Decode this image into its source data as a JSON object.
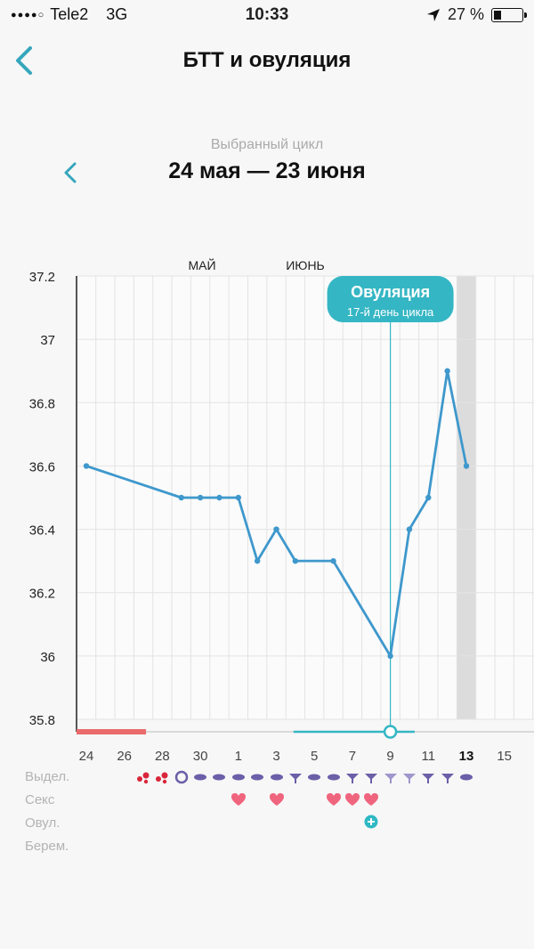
{
  "status_bar": {
    "carrier": "Tele2",
    "network": "3G",
    "time": "10:33",
    "battery": "27 %",
    "battery_level": 0.27
  },
  "header": {
    "title": "БТТ и овуляция"
  },
  "cycle": {
    "caption": "Выбранный цикл",
    "range": "24 мая — 23 июня"
  },
  "chart_data": {
    "type": "line",
    "ylim": [
      35.8,
      37.2
    ],
    "y_ticks": [
      "37.2",
      "37",
      "36.8",
      "36.6",
      "36.4",
      "36.2",
      "36",
      "35.8"
    ],
    "x_ticks": [
      "24",
      "26",
      "28",
      "30",
      "1",
      "3",
      "5",
      "7",
      "9",
      "11",
      "13",
      "15"
    ],
    "x_ticks_bold": "13",
    "months": [
      "МАЙ",
      "ИЮНЬ"
    ],
    "series": [
      {
        "points": [
          [
            0,
            36.6
          ],
          [
            5,
            36.5
          ],
          [
            6,
            36.5
          ],
          [
            7,
            36.5
          ],
          [
            8,
            36.5
          ],
          [
            9,
            36.3
          ],
          [
            10,
            36.4
          ],
          [
            11,
            36.3
          ],
          [
            13,
            36.3
          ],
          [
            16,
            36.0
          ],
          [
            17,
            36.4
          ],
          [
            18,
            36.5
          ],
          [
            19,
            36.9
          ],
          [
            20,
            36.6
          ]
        ]
      }
    ],
    "ovulation_marker": {
      "title": "Овуляция",
      "subtitle": "17-й день цикла",
      "day_index": 16
    },
    "highlight_day_index": 20,
    "period_days": [
      0,
      3
    ],
    "fertile_window_days": [
      11,
      17
    ],
    "line_color": "#3e98cc",
    "marker_color": "#35b6c4",
    "period_color": "#e96b6b"
  },
  "legend": {
    "discharge_label": "Выдел.",
    "sex_label": "Секс",
    "ovulation_label": "Овул.",
    "pregnancy_label": "Берем.",
    "discharge_icons": [
      {
        "day": 3,
        "icon": "blood-drops-icon"
      },
      {
        "day": 4,
        "icon": "blood-drops-icon"
      },
      {
        "day": 5,
        "icon": "ring-icon"
      },
      {
        "day": 6,
        "icon": "discharge-drop-icon"
      },
      {
        "day": 7,
        "icon": "discharge-drop-icon"
      },
      {
        "day": 8,
        "icon": "discharge-drop-icon"
      },
      {
        "day": 9,
        "icon": "discharge-drop-icon"
      },
      {
        "day": 10,
        "icon": "discharge-drop-icon"
      },
      {
        "day": 11,
        "icon": "discharge-cup-icon"
      },
      {
        "day": 12,
        "icon": "discharge-drop-icon"
      },
      {
        "day": 13,
        "icon": "discharge-drop-icon"
      },
      {
        "day": 14,
        "icon": "discharge-cup-icon"
      },
      {
        "day": 15,
        "icon": "discharge-cup-icon"
      },
      {
        "day": 16,
        "icon": "discharge-cup-light-icon"
      },
      {
        "day": 17,
        "icon": "discharge-cup-light-icon"
      },
      {
        "day": 18,
        "icon": "discharge-cup-icon"
      },
      {
        "day": 19,
        "icon": "discharge-cup-icon"
      },
      {
        "day": 20,
        "icon": "discharge-drop-icon"
      }
    ],
    "sex_days": [
      8,
      10,
      13,
      14,
      15
    ],
    "ovulation_days": [
      15
    ],
    "icon_colors": {
      "blood": "#d9263a",
      "discharge": "#6a5fa8",
      "discharge_light": "#9e96cc",
      "heart": "#f0657e",
      "ovulation": "#2fb8c4"
    }
  }
}
